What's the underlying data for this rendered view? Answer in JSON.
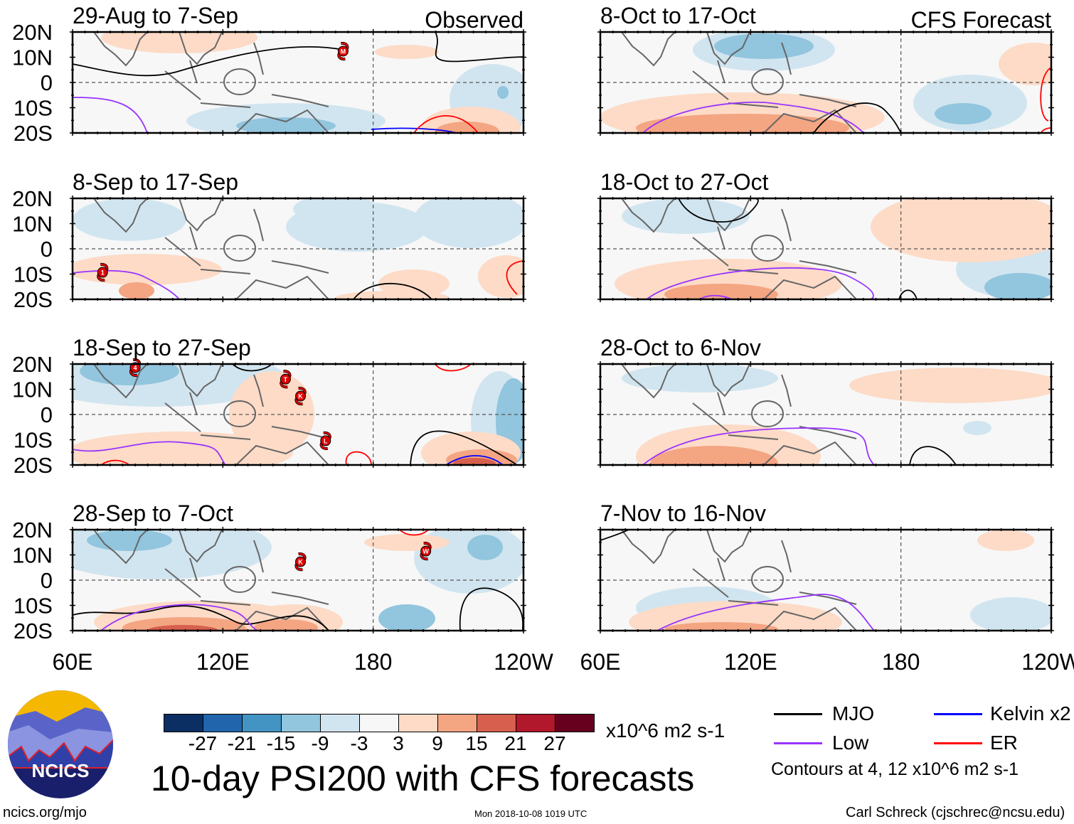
{
  "panels": [
    {
      "title": "29-Aug to 7-Sep",
      "tag": "Observed",
      "storms": [
        {
          "id": "M",
          "lon": 168,
          "lat": 12.4
        }
      ]
    },
    {
      "title": "8-Sep to 17-Sep",
      "tag": "",
      "storms": [
        {
          "id": "1",
          "lon": 72,
          "lat": -9.3
        }
      ]
    },
    {
      "title": "18-Sep to 27-Sep",
      "tag": "",
      "storms": [
        {
          "id": "4",
          "lon": 85,
          "lat": 18.6
        },
        {
          "id": "T",
          "lon": 145,
          "lat": 14
        },
        {
          "id": "K",
          "lon": 151,
          "lat": 7.3
        },
        {
          "id": "L",
          "lon": 161,
          "lat": -10.4
        }
      ]
    },
    {
      "title": "28-Sep to 7-Oct",
      "tag": "",
      "storms": [
        {
          "id": "K",
          "lon": 151,
          "lat": 7.3
        },
        {
          "id": "W",
          "lon": 201,
          "lat": 11.5
        }
      ]
    },
    {
      "title": "8-Oct to 17-Oct",
      "tag": "CFS Forecast",
      "storms": []
    },
    {
      "title": "18-Oct to 27-Oct",
      "tag": "",
      "storms": []
    },
    {
      "title": "28-Oct to 6-Nov",
      "tag": "",
      "storms": []
    },
    {
      "title": "7-Nov to 16-Nov",
      "tag": "",
      "storms": []
    }
  ],
  "chart_data": {
    "type": "heatmap",
    "title": "10-day PSI200 with CFS forecasts",
    "variable": "PSI200 anomaly",
    "units": "x10^6 m2 s-1",
    "lat_ticks": [
      "20N",
      "10N",
      "0",
      "10S",
      "20S"
    ],
    "lon_ticks": [
      "60E",
      "120E",
      "180",
      "120W"
    ],
    "lat_range": [
      -20,
      20
    ],
    "lon_range": [
      60,
      240
    ],
    "colorbar": {
      "levels": [
        "-27",
        "-21",
        "-15",
        "-9",
        "-3",
        "3",
        "9",
        "15",
        "21",
        "27"
      ],
      "colors": [
        "#0b2f63",
        "#2166ac",
        "#4393c3",
        "#92c5de",
        "#d1e5f0",
        "#f7f7f7",
        "#fddbc7",
        "#f4a582",
        "#d6604d",
        "#b2182b",
        "#67001f"
      ]
    },
    "contour_legend": [
      {
        "name": "MJO",
        "color": "#000000"
      },
      {
        "name": "Kelvin x2",
        "color": "#0000ff"
      },
      {
        "name": "Low",
        "color": "#9933ff"
      },
      {
        "name": "ER",
        "color": "#ff0000"
      }
    ],
    "contour_note": "Contours at 4, 12 x10^6 m2 s-1"
  },
  "footer": {
    "logo_text": "NCICS",
    "url": "ncics.org/mjo",
    "timestamp": "Mon 2018-10-08 1019 UTC",
    "author": "Carl Schreck (cjschrec@ncsu.edu)"
  }
}
